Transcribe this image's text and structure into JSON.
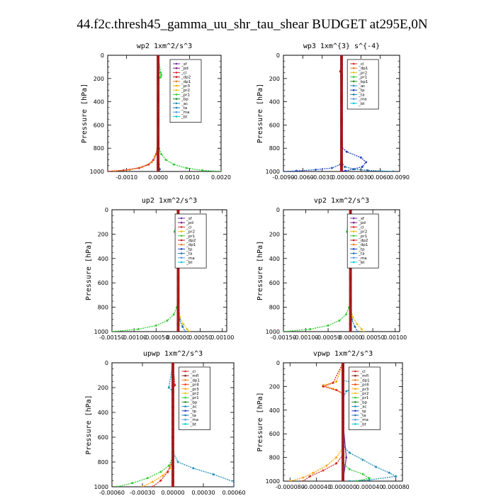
{
  "page_title": "44.f2c.thresh45_gamma_uu_shr_tau_shear  BUDGET at295E,0N",
  "chart_data": [
    {
      "type": "line",
      "title": "wp2",
      "units": "1xm^2/s^3",
      "ylabel": "Pressure [hPa]",
      "xlim": [
        -0.0016,
        0.002
      ],
      "ylim": [
        1000,
        0
      ],
      "xticks": [
        -0.001,
        0.0,
        0.001,
        0.002
      ],
      "xtick_labels": [
        "-0.0010",
        "0.0000",
        "0.0010",
        "0.0020"
      ],
      "yticks": [
        0,
        200,
        400,
        600,
        800,
        1000
      ],
      "legend": [
        "_sf",
        "_pd",
        "_cl",
        "_dp2",
        "_dp1",
        "_pr3",
        "_pr2",
        "_pr1",
        "_bp",
        "_ac",
        "_ta",
        "_ma",
        "_bt"
      ],
      "series": [
        {
          "name": "_cl",
          "color": "#d62728",
          "x": [
            0,
            0,
            -2e-05,
            -6e-05,
            -0.00015,
            -0.0003,
            -0.0006,
            -0.0011,
            -0.0016
          ],
          "y": [
            0,
            700,
            800,
            850,
            900,
            940,
            970,
            990,
            1000
          ]
        },
        {
          "name": "_dp1",
          "color": "#e67e22",
          "x": [
            0,
            0,
            -3e-05,
            -0.0001,
            -0.0002,
            -0.0005,
            -0.0009,
            -0.0014
          ],
          "y": [
            0,
            750,
            820,
            870,
            920,
            960,
            985,
            998
          ]
        },
        {
          "name": "_ac",
          "color": "#33cc33",
          "x": [
            0,
            8e-05,
            0.0001,
            8e-05,
            0,
            0,
            3e-05,
            0.0001,
            0.00025,
            0.0005,
            0.0009,
            0.0014,
            0.002
          ],
          "y": [
            0,
            150,
            170,
            190,
            210,
            740,
            800,
            850,
            900,
            940,
            970,
            990,
            1000
          ]
        },
        {
          "name": "_pd",
          "color": "#2244aa",
          "x": [
            0,
            0,
            2e-05,
            5e-05,
            4e-05
          ],
          "y": [
            0,
            880,
            940,
            980,
            1000
          ]
        },
        {
          "name": "_sf",
          "color": "#7030a0",
          "x": [
            0,
            0,
            0,
            0
          ],
          "y": [
            0,
            500,
            900,
            1000
          ]
        }
      ]
    },
    {
      "type": "line",
      "title": "wp3",
      "units": "1xm^{3} s^{-4}",
      "ylabel": "Pressure [hPa]",
      "xlim": [
        -0.009,
        0.009
      ],
      "ylim": [
        1000,
        0
      ],
      "xticks": [
        -0.009,
        -0.006,
        -0.003,
        0.0,
        0.003,
        0.006,
        0.009
      ],
      "xtick_labels": [
        "-0.0090",
        "-0.0060",
        "-0.0030",
        "0.0000",
        "0.0030",
        "0.0060",
        "0.0090"
      ],
      "yticks": [
        0,
        200,
        400,
        600,
        800,
        1000
      ],
      "legend": [
        "_cl",
        "_dp1",
        "_pr2",
        "_pr1",
        "_bp1",
        "_ac",
        "_tp",
        "_ta",
        "_ma",
        "_bt"
      ],
      "series": [
        {
          "name": "_tp",
          "color": "#1f3fbf",
          "x": [
            0,
            0,
            0.0008,
            0.003,
            0.0038,
            0.0032,
            0.0018,
            0.0006,
            0.0002
          ],
          "y": [
            0,
            790,
            830,
            880,
            920,
            960,
            980,
            995,
            1000
          ]
        },
        {
          "name": "_ta",
          "color": "#2255cc",
          "x": [
            0,
            -0.0002,
            -0.0015,
            -0.004,
            -0.007,
            -0.009
          ],
          "y": [
            900,
            940,
            970,
            985,
            995,
            1000
          ]
        },
        {
          "name": "_ma",
          "color": "#1f77b4",
          "x": [
            0,
            0.0005,
            0.002,
            0.004,
            0.006,
            0.008
          ],
          "y": [
            920,
            960,
            980,
            990,
            996,
            1000
          ]
        },
        {
          "name": "_cl",
          "color": "#d62728",
          "x": [
            0,
            0,
            0
          ],
          "y": [
            0,
            500,
            1000
          ]
        },
        {
          "name": "_dp1",
          "color": "#7f1f1f",
          "x": [
            0,
            -0.0002,
            0,
            0
          ],
          "y": [
            0,
            140,
            170,
            1000
          ]
        }
      ]
    },
    {
      "type": "line",
      "title": "up2",
      "units": "1xm^2/s^3",
      "ylabel": "Pressure [hPa]",
      "xlim": [
        -0.0015,
        0.0011
      ],
      "ylim": [
        1000,
        0
      ],
      "xticks": [
        -0.0015,
        -0.001,
        -0.0005,
        0.0,
        0.0005,
        0.001
      ],
      "xtick_labels": [
        "-0.00150",
        "-0.00100",
        "-0.00050",
        "0.00000",
        "0.00050",
        "0.00100"
      ],
      "yticks": [
        0,
        200,
        400,
        600,
        800,
        1000
      ],
      "legend": [
        "_sf",
        "_pd",
        "_cl",
        "_pr2",
        "_pr1",
        "_dp2",
        "_dp1",
        "_tp",
        "_ta",
        "_ma",
        "_bt"
      ],
      "series": [
        {
          "name": "_dp1",
          "color": "#33cc33",
          "x": [
            0,
            -8e-05,
            0,
            0,
            -3e-05,
            -0.0001,
            -0.00025,
            -0.0005,
            -0.0009,
            -0.0015
          ],
          "y": [
            0,
            180,
            220,
            720,
            800,
            860,
            910,
            950,
            980,
            1000
          ]
        },
        {
          "name": "_pr1",
          "color": "#e8c21a",
          "x": [
            0,
            0,
            4e-05,
            0.00012,
            0.0002,
            0.00025
          ],
          "y": [
            0,
            800,
            880,
            940,
            980,
            1000
          ]
        },
        {
          "name": "_tp",
          "color": "#1f77b4",
          "x": [
            0,
            0,
            3e-05,
            0.0001,
            0.00016
          ],
          "y": [
            0,
            820,
            900,
            960,
            1000
          ]
        },
        {
          "name": "_cl",
          "color": "#a01818",
          "x": [
            0,
            0,
            0
          ],
          "y": [
            0,
            500,
            1000
          ]
        }
      ]
    },
    {
      "type": "line",
      "title": "vp2",
      "units": "1xm^2/s^3",
      "ylabel": "Pressure [hPa]",
      "xlim": [
        -0.0015,
        0.0011
      ],
      "ylim": [
        1000,
        0
      ],
      "xticks": [
        -0.0015,
        -0.001,
        -0.0005,
        0.0,
        0.0005,
        0.001
      ],
      "xtick_labels": [
        "-0.00150",
        "-0.00100",
        "-0.00050",
        "0.00000",
        "0.00050",
        "0.00100"
      ],
      "yticks": [
        0,
        200,
        400,
        600,
        800,
        1000
      ],
      "legend": [
        "_sf",
        "_pd",
        "_cl",
        "_pr2",
        "_pr1",
        "_dp2",
        "_dp1",
        "_tp",
        "_ta",
        "_ma",
        "_bt"
      ],
      "series": [
        {
          "name": "_dp1",
          "color": "#33cc33",
          "x": [
            0,
            -8e-05,
            0,
            0,
            -3e-05,
            -0.0001,
            -0.00025,
            -0.0005,
            -0.0009,
            -0.0015
          ],
          "y": [
            0,
            180,
            220,
            720,
            800,
            860,
            910,
            950,
            980,
            1000
          ]
        },
        {
          "name": "_pr1",
          "color": "#e8c21a",
          "x": [
            0,
            0,
            5e-05,
            0.00015,
            0.00025,
            0.0003
          ],
          "y": [
            0,
            800,
            880,
            940,
            980,
            1000
          ]
        },
        {
          "name": "_tp",
          "color": "#1f77b4",
          "x": [
            0,
            0,
            3e-05,
            0.0001,
            0.00016
          ],
          "y": [
            0,
            820,
            900,
            960,
            1000
          ]
        },
        {
          "name": "_cl",
          "color": "#a01818",
          "x": [
            0,
            0,
            0
          ],
          "y": [
            0,
            500,
            1000
          ]
        }
      ]
    },
    {
      "type": "line",
      "title": "upwp",
      "units": "1xm^2/s^3",
      "ylabel": "Pressure [hPa]",
      "xlim": [
        -0.0006,
        0.0006
      ],
      "ylim": [
        1000,
        0
      ],
      "xticks": [
        -0.0006,
        -0.0003,
        0.0,
        0.0003,
        0.0006
      ],
      "xtick_labels": [
        "-0.00060",
        "-0.00030",
        "0.00000",
        "0.00030",
        "0.00060"
      ],
      "yticks": [
        0,
        200,
        400,
        600,
        800,
        1000
      ],
      "legend": [
        "_cl",
        "_mfl",
        "_dp1",
        "_pr4",
        "_pr3",
        "_pr2",
        "_pr1",
        "_bp",
        "_ac",
        "_tp",
        "_ta",
        "_ma",
        "_bt"
      ],
      "series": [
        {
          "name": "_tp",
          "color": "#1f8fb4",
          "x": [
            0,
            -4e-05,
            0,
            0,
            5e-05,
            0.0002,
            0.0004,
            0.0006,
            0.0006
          ],
          "y": [
            0,
            200,
            230,
            720,
            800,
            850,
            900,
            960,
            1000
          ]
        },
        {
          "name": "_pr2",
          "color": "#33cc33",
          "x": [
            0,
            0,
            -4e-05,
            -0.00012,
            -0.00025,
            -0.0004,
            -0.00055
          ],
          "y": [
            0,
            760,
            830,
            880,
            930,
            970,
            1000
          ]
        },
        {
          "name": "_pr3",
          "color": "#ffa500",
          "x": [
            0,
            0,
            -3e-05,
            -0.0001,
            -0.0002,
            -0.0003
          ],
          "y": [
            0,
            780,
            850,
            910,
            960,
            1000
          ]
        },
        {
          "name": "_dp1",
          "color": "#d62728",
          "x": [
            0,
            2e-05,
            0,
            0,
            -5e-05,
            -0.00012,
            -0.0002
          ],
          "y": [
            0,
            180,
            220,
            780,
            880,
            950,
            1000
          ]
        },
        {
          "name": "_cl",
          "color": "#7030a0",
          "x": [
            0,
            0,
            0
          ],
          "y": [
            0,
            500,
            1000
          ]
        }
      ]
    },
    {
      "type": "line",
      "title": "vpwp",
      "units": "1xm^2/s^3",
      "ylabel": "Pressure [hPa]",
      "xlim": [
        -9e-05,
        9e-05
      ],
      "ylim": [
        1000,
        0
      ],
      "xticks": [
        -8e-05,
        -4e-05,
        0.0,
        4e-05,
        8e-05
      ],
      "xtick_labels": [
        "-0.000080",
        "-0.000040",
        "0.000000",
        "0.000040",
        "0.000080"
      ],
      "yticks": [
        0,
        200,
        400,
        600,
        800,
        1000
      ],
      "legend": [
        "_cl",
        "_mfl",
        "_dp1",
        "_pr4",
        "_pr3",
        "_pr2",
        "_pr1",
        "_bp",
        "_ac",
        "_tp",
        "_ta",
        "_ma",
        "_bt"
      ],
      "series": [
        {
          "name": "_tp",
          "color": "#1f8fb4",
          "x": [
            0,
            0,
            2e-05,
            2.5e-05,
            5e-06,
            0,
            0,
            1e-05,
            3e-05,
            5e-05,
            7e-05,
            8e-05,
            4e-05,
            1e-05
          ],
          "y": [
            0,
            150,
            170,
            200,
            240,
            300,
            700,
            760,
            820,
            880,
            930,
            960,
            990,
            1000
          ]
        },
        {
          "name": "_pr3",
          "color": "#ffa500",
          "x": [
            0,
            -1e-05,
            -3e-05,
            -1.5e-05,
            0,
            0,
            -1e-05,
            -2.5e-05,
            -4.5e-05,
            -6e-05,
            -8e-05
          ],
          "y": [
            0,
            160,
            190,
            220,
            260,
            720,
            800,
            870,
            930,
            970,
            1000
          ]
        },
        {
          "name": "_dp1",
          "color": "#d62728",
          "x": [
            0,
            -1.5e-05,
            -3e-05,
            -1e-05,
            0,
            0,
            -1e-05,
            -3e-05,
            -5e-05,
            -6e-05
          ],
          "y": [
            0,
            170,
            200,
            230,
            260,
            780,
            850,
            910,
            960,
            1000
          ]
        },
        {
          "name": "_pr2",
          "color": "#33cc33",
          "x": [
            0,
            0,
            1e-05,
            3e-05,
            4e-05,
            2e-05
          ],
          "y": [
            0,
            850,
            900,
            940,
            975,
            1000
          ]
        },
        {
          "name": "_cl",
          "color": "#7030a0",
          "x": [
            0,
            0,
            5e-06,
            0
          ],
          "y": [
            0,
            500,
            800,
            1000
          ]
        }
      ]
    }
  ]
}
